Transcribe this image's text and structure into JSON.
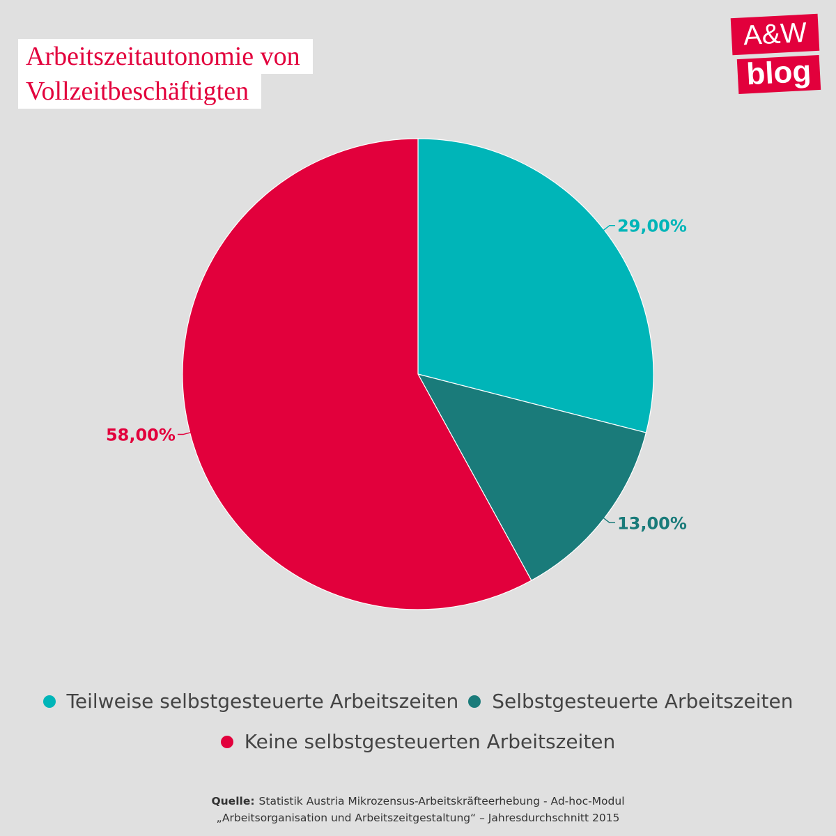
{
  "title": {
    "line1": "Arbeitszeitautonomie von",
    "line2": "Vollzeitbeschäftigten"
  },
  "logo": {
    "line1": "A&W",
    "line2": "blog"
  },
  "chart_data": {
    "type": "pie",
    "start_angle": "12 o'clock",
    "direction": "clockwise",
    "slices": [
      {
        "name": "Teilweise selbstgesteuerte Arbeitszeiten",
        "value": 29,
        "label": "29,00%",
        "color": "#00b5b8"
      },
      {
        "name": "Selbstgesteuerte Arbeitszeiten",
        "value": 13,
        "label": "13,00%",
        "color": "#1a7b7a"
      },
      {
        "name": "Keine selbstgesteuerten Arbeitszeiten",
        "value": 58,
        "label": "58,00%",
        "color": "#e2003c"
      }
    ],
    "legend": "bottom"
  },
  "source": {
    "label": "Quelle:",
    "line1": "Statistik Austria Mikrozensus-Arbeitskräfteerhebung - Ad-hoc-Modul",
    "line2": "„Arbeitsorganisation und Arbeitszeitgestaltung“ – Jahresdurchschnitt 2015"
  }
}
